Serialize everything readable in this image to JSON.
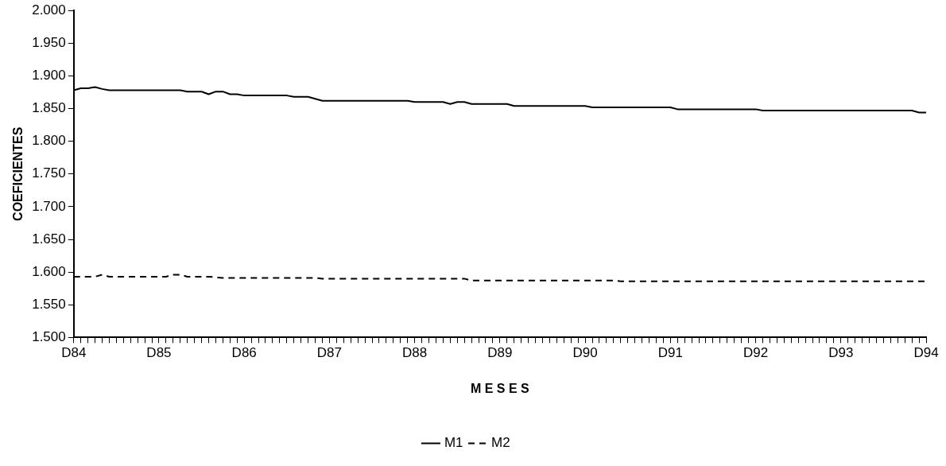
{
  "chart_data": {
    "type": "line",
    "xlabel": "M E S E S",
    "ylabel": "COEFICIENTES",
    "categories": [
      "D84",
      null,
      null,
      null,
      null,
      null,
      null,
      null,
      null,
      null,
      null,
      null,
      "D85",
      null,
      null,
      null,
      null,
      null,
      null,
      null,
      null,
      null,
      null,
      null,
      "D86",
      null,
      null,
      null,
      null,
      null,
      null,
      null,
      null,
      null,
      null,
      null,
      "D87",
      null,
      null,
      null,
      null,
      null,
      null,
      null,
      null,
      null,
      null,
      null,
      "D88",
      null,
      null,
      null,
      null,
      null,
      null,
      null,
      null,
      null,
      null,
      null,
      "D89",
      null,
      null,
      null,
      null,
      null,
      null,
      null,
      null,
      null,
      null,
      null,
      "D90",
      null,
      null,
      null,
      null,
      null,
      null,
      null,
      null,
      null,
      null,
      null,
      "D91",
      null,
      null,
      null,
      null,
      null,
      null,
      null,
      null,
      null,
      null,
      null,
      "D92",
      null,
      null,
      null,
      null,
      null,
      null,
      null,
      null,
      null,
      null,
      null,
      "D93",
      null,
      null,
      null,
      null,
      null,
      null,
      null,
      null,
      null,
      null,
      null,
      "D94"
    ],
    "series": [
      {
        "name": "M1",
        "color": "#000000",
        "line_style": "solid",
        "values": [
          1.878,
          1.881,
          1.881,
          1.883,
          1.88,
          1.878,
          1.878,
          1.878,
          1.878,
          1.878,
          1.878,
          1.878,
          1.878,
          1.878,
          1.878,
          1.878,
          1.876,
          1.876,
          1.876,
          1.872,
          1.876,
          1.876,
          1.872,
          1.872,
          1.87,
          1.87,
          1.87,
          1.87,
          1.87,
          1.87,
          1.87,
          1.868,
          1.868,
          1.868,
          1.865,
          1.862,
          1.862,
          1.862,
          1.862,
          1.862,
          1.862,
          1.862,
          1.862,
          1.862,
          1.862,
          1.862,
          1.862,
          1.862,
          1.86,
          1.86,
          1.86,
          1.86,
          1.86,
          1.857,
          1.86,
          1.86,
          1.857,
          1.857,
          1.857,
          1.857,
          1.857,
          1.857,
          1.854,
          1.854,
          1.854,
          1.854,
          1.854,
          1.854,
          1.854,
          1.854,
          1.854,
          1.854,
          1.854,
          1.852,
          1.852,
          1.852,
          1.852,
          1.852,
          1.852,
          1.852,
          1.852,
          1.852,
          1.852,
          1.852,
          1.852,
          1.849,
          1.849,
          1.849,
          1.849,
          1.849,
          1.849,
          1.849,
          1.849,
          1.849,
          1.849,
          1.849,
          1.849,
          1.847,
          1.847,
          1.847,
          1.847,
          1.847,
          1.847,
          1.847,
          1.847,
          1.847,
          1.847,
          1.847,
          1.847,
          1.847,
          1.847,
          1.847,
          1.847,
          1.847,
          1.847,
          1.847,
          1.847,
          1.847,
          1.847,
          1.844,
          1.844
        ]
      },
      {
        "name": "M2",
        "color": "#000000",
        "line_style": "dashed",
        "values": [
          1.593,
          1.593,
          1.593,
          1.593,
          1.596,
          1.593,
          1.593,
          1.593,
          1.593,
          1.593,
          1.593,
          1.593,
          1.593,
          1.593,
          1.596,
          1.596,
          1.593,
          1.593,
          1.593,
          1.593,
          1.592,
          1.591,
          1.591,
          1.591,
          1.591,
          1.591,
          1.591,
          1.591,
          1.591,
          1.591,
          1.591,
          1.591,
          1.591,
          1.591,
          1.591,
          1.59,
          1.59,
          1.59,
          1.59,
          1.59,
          1.59,
          1.59,
          1.59,
          1.59,
          1.59,
          1.59,
          1.59,
          1.59,
          1.59,
          1.59,
          1.59,
          1.59,
          1.59,
          1.59,
          1.59,
          1.59,
          1.587,
          1.587,
          1.587,
          1.587,
          1.587,
          1.587,
          1.587,
          1.587,
          1.587,
          1.587,
          1.587,
          1.587,
          1.587,
          1.587,
          1.587,
          1.587,
          1.587,
          1.587,
          1.587,
          1.587,
          1.587,
          1.586,
          1.586,
          1.586,
          1.586,
          1.586,
          1.586,
          1.586,
          1.586,
          1.586,
          1.586,
          1.586,
          1.586,
          1.586,
          1.586,
          1.586,
          1.586,
          1.586,
          1.586,
          1.586,
          1.586,
          1.586,
          1.586,
          1.586,
          1.586,
          1.586,
          1.586,
          1.586,
          1.586,
          1.586,
          1.586,
          1.586,
          1.586,
          1.586,
          1.586,
          1.586,
          1.586,
          1.586,
          1.586,
          1.586,
          1.586,
          1.586,
          1.586,
          1.586,
          1.586
        ]
      }
    ],
    "ylim": [
      1.5,
      2.0
    ],
    "yticks": [
      {
        "value": 1.5,
        "label": "1.500"
      },
      {
        "value": 1.55,
        "label": "1.550"
      },
      {
        "value": 1.6,
        "label": "1.600"
      },
      {
        "value": 1.65,
        "label": "1.650"
      },
      {
        "value": 1.7,
        "label": "1.700"
      },
      {
        "value": 1.75,
        "label": "1.750"
      },
      {
        "value": 1.8,
        "label": "1.800"
      },
      {
        "value": 1.85,
        "label": "1.850"
      },
      {
        "value": 1.9,
        "label": "1.900"
      },
      {
        "value": 1.95,
        "label": "1.950"
      },
      {
        "value": 2.0,
        "label": "2.000"
      }
    ],
    "grid": false,
    "legend": "bottom",
    "marker": "none"
  }
}
